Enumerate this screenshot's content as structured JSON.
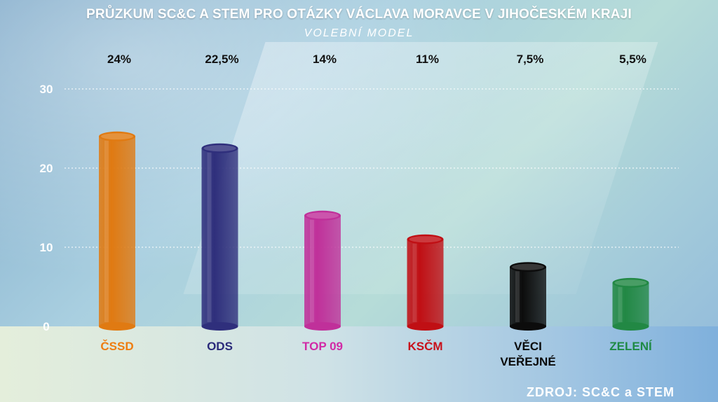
{
  "title": "PRŮZKUM SC&C A STEM PRO OTÁZKY VÁCLAVA MORAVCE V JIHOČESKÉM KRAJI",
  "subtitle": "VOLEBNÍ MODEL",
  "source": "ZDROJ: SC&C a STEM",
  "chart_data": {
    "type": "bar",
    "title": "PRŮZKUM SC&C A STEM PRO OTÁZKY VÁCLAVA MORAVCE V JIHOČESKÉM KRAJI",
    "subtitle": "VOLEBNÍ MODEL",
    "xlabel": "",
    "ylabel": "",
    "ylim": [
      0,
      30
    ],
    "yticks": [
      "0",
      "10",
      "20",
      "30"
    ],
    "grid": true,
    "categories": [
      {
        "lines": [
          "ČSSD"
        ],
        "value": 24,
        "label": "24%",
        "color": "#e07a12",
        "label_color": "#ee7d10"
      },
      {
        "lines": [
          "ODS"
        ],
        "value": 22.5,
        "label": "22,5%",
        "color": "#2f2f7c",
        "label_color": "#2a2a7a"
      },
      {
        "lines": [
          "TOP 09"
        ],
        "value": 14,
        "label": "14%",
        "color": "#c0309a",
        "label_color": "#d12aa6"
      },
      {
        "lines": [
          "KSČM"
        ],
        "value": 11,
        "label": "11%",
        "color": "#c00f14",
        "label_color": "#c8101a"
      },
      {
        "lines": [
          "VĚCI",
          "VEŘEJNÉ"
        ],
        "value": 7.5,
        "label": "7,5%",
        "color": "#0c0c0c",
        "label_color": "#0a0a0a"
      },
      {
        "lines": [
          "ZELENÍ"
        ],
        "value": 5.5,
        "label": "5,5%",
        "color": "#228844",
        "label_color": "#1f8a45"
      }
    ]
  }
}
